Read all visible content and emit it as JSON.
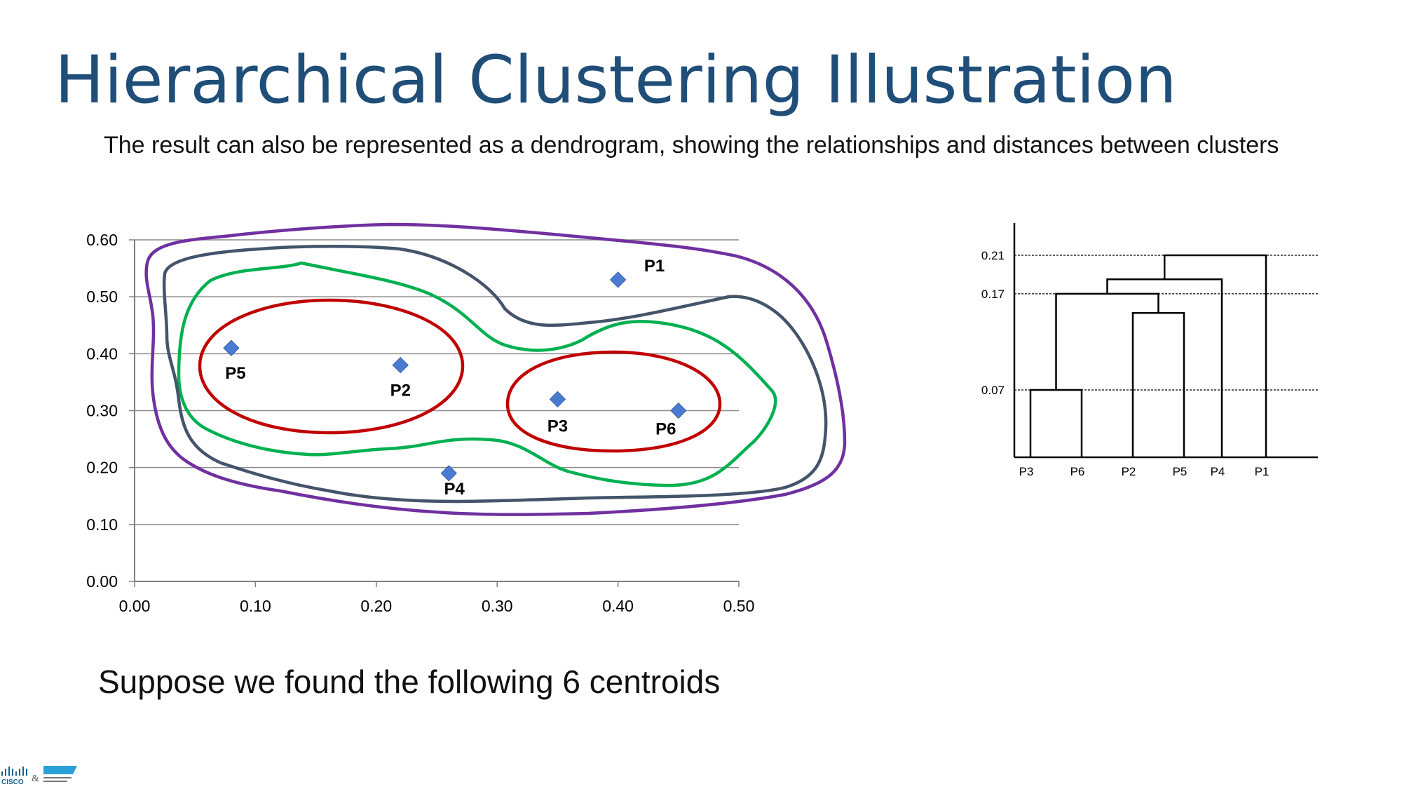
{
  "slide": {
    "title": "Hierarchical Clustering Illustration",
    "subtitle": "The result can also be represented as a dendrogram, showing the relationships and distances between clusters",
    "caption": "Suppose we found the following 6 centroids",
    "logo": {
      "brand": "CISCO",
      "separator": "&"
    }
  },
  "colors": {
    "title": "#1f4e79",
    "points": "#4a7bd0",
    "level1": "#c00000",
    "level2": "#00b050",
    "level3": "#44546a",
    "level4": "#7030a0",
    "grid": "#8c8c8c"
  },
  "chart_data": [
    {
      "type": "scatter",
      "title": "",
      "xlabel": "",
      "ylabel": "",
      "xlim": [
        0,
        0.5
      ],
      "ylim": [
        0,
        0.6
      ],
      "x_ticks": [
        "0.00",
        "0.10",
        "0.20",
        "0.30",
        "0.40",
        "0.50"
      ],
      "y_ticks": [
        "0.00",
        "0.10",
        "0.20",
        "0.30",
        "0.40",
        "0.50",
        "0.60"
      ],
      "grid": "horizontal",
      "points": [
        {
          "label": "P1",
          "x": 0.4,
          "y": 0.53
        },
        {
          "label": "P2",
          "x": 0.22,
          "y": 0.38
        },
        {
          "label": "P3",
          "x": 0.35,
          "y": 0.32
        },
        {
          "label": "P4",
          "x": 0.26,
          "y": 0.19
        },
        {
          "label": "P5",
          "x": 0.08,
          "y": 0.41
        },
        {
          "label": "P6",
          "x": 0.45,
          "y": 0.3
        }
      ],
      "cluster_contours": [
        {
          "level": 1,
          "members": [
            "P5",
            "P2"
          ],
          "color": "#c00000"
        },
        {
          "level": 1,
          "members": [
            "P3",
            "P6"
          ],
          "color": "#c00000"
        },
        {
          "level": 2,
          "members": [
            "P5",
            "P2",
            "P3",
            "P6"
          ],
          "color": "#00b050"
        },
        {
          "level": 3,
          "members": [
            "P5",
            "P2",
            "P3",
            "P6",
            "P4"
          ],
          "color": "#44546a"
        },
        {
          "level": 4,
          "members": [
            "P5",
            "P2",
            "P3",
            "P6",
            "P4",
            "P1"
          ],
          "color": "#7030a0"
        }
      ]
    },
    {
      "type": "dendrogram",
      "leaves": [
        "P3",
        "P6",
        "P2",
        "P5",
        "P4",
        "P1"
      ],
      "y_ticks": [
        "0.07",
        "0.17",
        "0.21"
      ],
      "merges": [
        {
          "left": "P3",
          "right": "P6",
          "height": 0.07
        },
        {
          "left": "P2",
          "right": "P5",
          "height": 0.15
        },
        {
          "left": "P3-P6",
          "right": "P2-P5",
          "height": 0.17
        },
        {
          "left": "P3-P6-P2-P5",
          "right": "P4",
          "height": 0.185
        },
        {
          "left": "P3-P6-P2-P5-P4",
          "right": "P1",
          "height": 0.21
        }
      ]
    }
  ]
}
